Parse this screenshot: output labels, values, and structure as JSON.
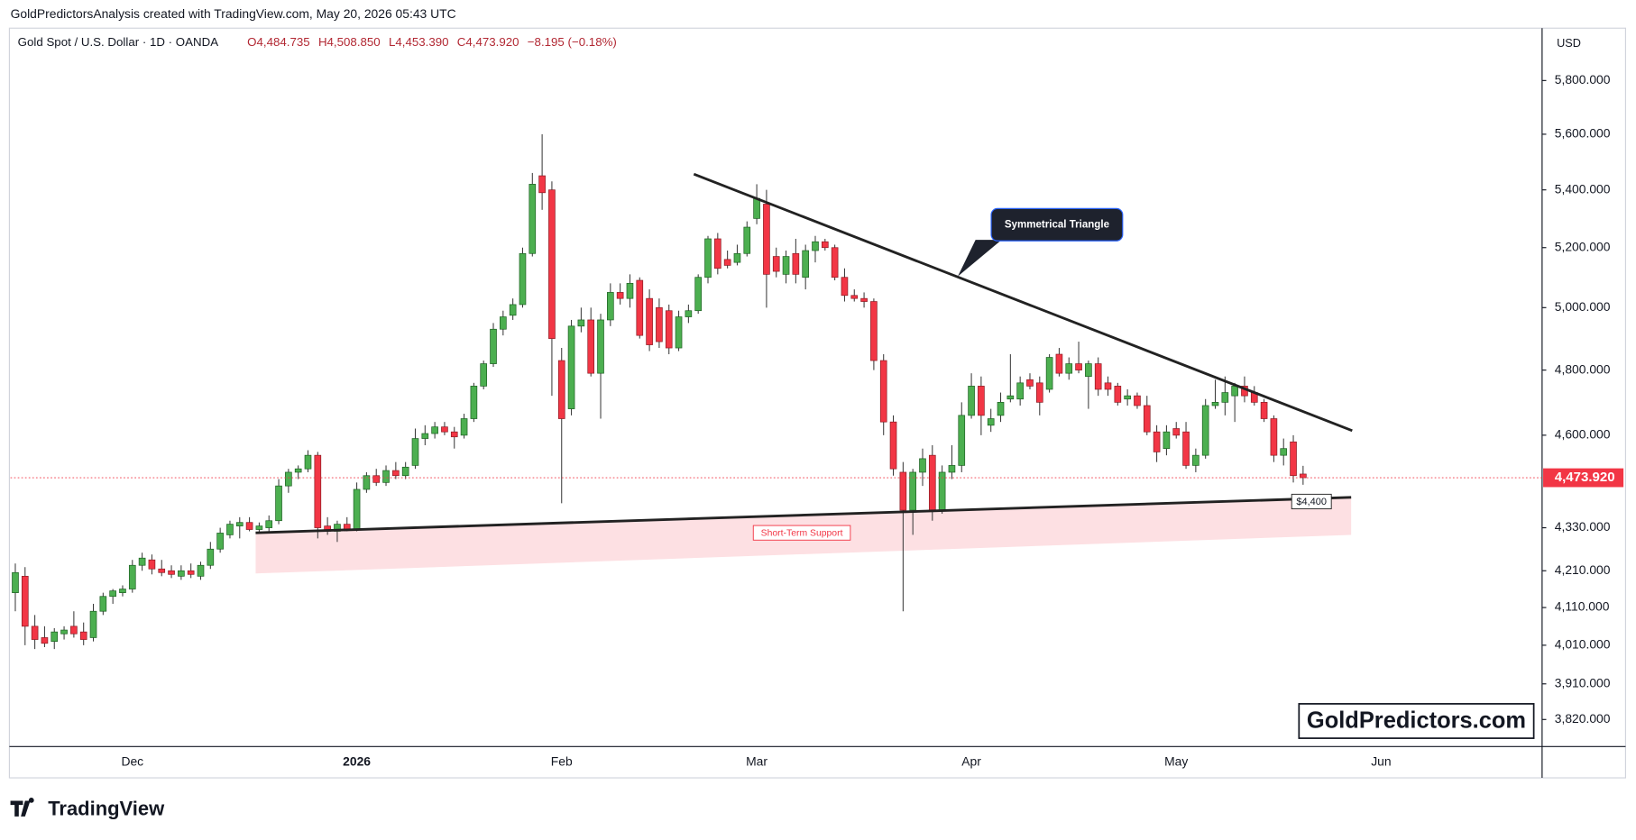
{
  "chart_data": {
    "type": "candlestick",
    "attribution": "GoldPredictorsAnalysis created with TradingView.com, May 20, 2026 05:43 UTC",
    "symbol": "Gold Spot / U.S. Dollar · 1D · OANDA",
    "header_values": [
      "O4,484.735",
      "H4,508.850",
      "L4,453.390",
      "C4,473.920",
      "−8.195 (−0.18%)"
    ],
    "currency": "USD",
    "last_price_label": "4,473.920",
    "annotations": [
      "Symmetrical Triangle",
      "Short-Term Support",
      "$4,400"
    ],
    "watermark": "GoldPredictors.com",
    "logo": "TradingView",
    "log_scale": true,
    "up_color": "#4caf50",
    "down_color": "#f23645",
    "categories": [
      null,
      null,
      null,
      null,
      null,
      null,
      null,
      null,
      null,
      null,
      null,
      null,
      "Dec",
      null,
      null,
      null,
      null,
      null,
      null,
      null,
      null,
      null,
      null,
      null,
      null,
      null,
      null,
      null,
      null,
      null,
      null,
      null,
      null,
      null,
      null,
      "2026",
      null,
      null,
      null,
      null,
      null,
      null,
      null,
      null,
      null,
      null,
      null,
      null,
      null,
      null,
      null,
      null,
      null,
      null,
      null,
      null,
      "Feb",
      null,
      null,
      null,
      null,
      null,
      null,
      null,
      null,
      null,
      null,
      null,
      null,
      null,
      null,
      null,
      null,
      null,
      null,
      null,
      "Mar",
      null,
      null,
      null,
      null,
      null,
      null,
      null,
      null,
      null,
      null,
      null,
      null,
      null,
      null,
      null,
      null,
      null,
      null,
      null,
      null,
      null,
      "Apr",
      null,
      null,
      null,
      null,
      null,
      null,
      null,
      null,
      null,
      null,
      null,
      null,
      null,
      null,
      null,
      null,
      null,
      null,
      null,
      null,
      "May",
      null,
      null,
      null,
      null,
      null,
      null,
      null,
      null,
      null,
      null,
      null,
      null,
      null,
      null,
      null,
      null,
      null,
      null,
      null,
      null,
      "Jun",
      null,
      null,
      null,
      null,
      null,
      null,
      null,
      null,
      null,
      null,
      null,
      null,
      null,
      null,
      null,
      null
    ],
    "open": [
      4150,
      4195,
      4060,
      4030,
      4020,
      4040,
      4060,
      4045,
      4030,
      4100,
      4140,
      4150,
      4160,
      4225,
      4240,
      4215,
      4210,
      4195,
      4210,
      4195,
      4225,
      4270,
      4310,
      4335,
      4345,
      4325,
      4330,
      4350,
      4450,
      4490,
      4500,
      4540,
      4335,
      4320,
      4340,
      4325,
      4440,
      4480,
      4460,
      4495,
      4480,
      4510,
      4590,
      4605,
      4625,
      4610,
      4600,
      4650,
      4750,
      4820,
      4930,
      4975,
      5010,
      5180,
      5450,
      5400,
      4830,
      4680,
      4940,
      4960,
      4790,
      4960,
      5050,
      5030,
      5090,
      5030,
      5000,
      4990,
      4870,
      4970,
      4990,
      5100,
      5230,
      5160,
      5150,
      5180,
      5300,
      5350,
      5170,
      5110,
      5180,
      5100,
      5190,
      5220,
      5200,
      5100,
      5040,
      5030,
      5020,
      4830,
      4640,
      4490,
      4380,
      4490,
      4540,
      4380,
      4490,
      4510,
      4660,
      4750,
      4630,
      4660,
      4710,
      4710,
      4770,
      4760,
      4740,
      4850,
      4790,
      4820,
      4780,
      4820,
      4760,
      4750,
      4710,
      4720,
      4690,
      4610,
      4560,
      4620,
      4610,
      4510,
      4540,
      4690,
      4700,
      4720,
      4750,
      4730,
      4700,
      4650,
      4540,
      4580,
      4484.735,
      null,
      null,
      null,
      null,
      null,
      null,
      null,
      null,
      null,
      null,
      null,
      null,
      null,
      null,
      null,
      null,
      null,
      null,
      null,
      null,
      null,
      null,
      null,
      null
    ],
    "high": [
      4230,
      4220,
      4090,
      4060,
      4055,
      4060,
      4100,
      4070,
      4120,
      4150,
      4160,
      4170,
      4240,
      4260,
      4255,
      4240,
      4225,
      4225,
      4230,
      4235,
      4290,
      4330,
      4350,
      4360,
      4360,
      4345,
      4365,
      4470,
      4500,
      4510,
      4555,
      4550,
      4360,
      4350,
      4360,
      4460,
      4490,
      4500,
      4510,
      4520,
      4520,
      4620,
      4630,
      4640,
      4640,
      4625,
      4665,
      4760,
      4830,
      4950,
      4990,
      5030,
      5200,
      5460,
      5600,
      5430,
      4870,
      4960,
      5000,
      5000,
      4980,
      5080,
      5080,
      5110,
      5100,
      5060,
      5030,
      5010,
      4990,
      5010,
      5110,
      5240,
      5250,
      5190,
      5210,
      5290,
      5420,
      5400,
      5200,
      5190,
      5230,
      5210,
      5240,
      5230,
      5210,
      5130,
      5060,
      5050,
      5030,
      4850,
      4660,
      4520,
      4500,
      4560,
      4570,
      4510,
      4570,
      4700,
      4790,
      4780,
      4680,
      4730,
      4850,
      4780,
      4790,
      4780,
      4850,
      4870,
      4840,
      4890,
      4830,
      4840,
      4780,
      4760,
      4740,
      4730,
      4720,
      4630,
      4630,
      4640,
      4640,
      4560,
      4710,
      4770,
      4780,
      4760,
      4780,
      4750,
      4710,
      4660,
      4590,
      4600,
      4508.85,
      null,
      null,
      null,
      null,
      null,
      null,
      null,
      null,
      null,
      null,
      null,
      null,
      null,
      null,
      null,
      null,
      null,
      null,
      null,
      null,
      null,
      null,
      null,
      null
    ],
    "low": [
      4100,
      4010,
      4000,
      4005,
      4000,
      4025,
      4030,
      4010,
      4020,
      4090,
      4120,
      4140,
      4150,
      4210,
      4200,
      4195,
      4190,
      4185,
      4190,
      4185,
      4215,
      4260,
      4300,
      4300,
      4320,
      4315,
      4320,
      4340,
      4430,
      4470,
      4490,
      4300,
      4310,
      4290,
      4320,
      4320,
      4430,
      4450,
      4450,
      4470,
      4470,
      4500,
      4570,
      4590,
      4600,
      4560,
      4590,
      4640,
      4740,
      4810,
      4910,
      4960,
      5000,
      5170,
      5330,
      4720,
      4400,
      4660,
      4920,
      4780,
      4650,
      4940,
      5010,
      5000,
      4900,
      4860,
      4870,
      4850,
      4860,
      4950,
      4980,
      5080,
      5110,
      5130,
      5140,
      5170,
      5280,
      5000,
      5100,
      5080,
      5080,
      5060,
      5150,
      5190,
      5090,
      5020,
      5020,
      5000,
      4800,
      4600,
      4480,
      4100,
      4310,
      4450,
      4350,
      4370,
      4470,
      4490,
      4650,
      4600,
      4610,
      4640,
      4700,
      4690,
      4740,
      4660,
      4730,
      4780,
      4770,
      4790,
      4680,
      4720,
      4720,
      4690,
      4690,
      4680,
      4600,
      4520,
      4540,
      4590,
      4500,
      4490,
      4530,
      4680,
      4660,
      4640,
      4700,
      4690,
      4640,
      4520,
      4510,
      4460,
      4453.39,
      null,
      null,
      null,
      null,
      null,
      null,
      null,
      null,
      null,
      null,
      null,
      null,
      null,
      null,
      null,
      null,
      null,
      null,
      null,
      null,
      null,
      null,
      null,
      null
    ],
    "close": [
      4205,
      4060,
      4025,
      4015,
      4045,
      4050,
      4040,
      4025,
      4100,
      4140,
      4155,
      4160,
      4225,
      4245,
      4215,
      4205,
      4200,
      4210,
      4200,
      4225,
      4270,
      4315,
      4340,
      4345,
      4325,
      4335,
      4350,
      4450,
      4490,
      4500,
      4540,
      4330,
      4320,
      4340,
      4325,
      4440,
      4480,
      4460,
      4495,
      4480,
      4505,
      4590,
      4605,
      4625,
      4610,
      4595,
      4650,
      4750,
      4820,
      4930,
      4970,
      5010,
      5180,
      5420,
      5390,
      4900,
      4650,
      4940,
      4960,
      4790,
      4960,
      5050,
      5030,
      5080,
      4910,
      4880,
      4890,
      4870,
      4970,
      4990,
      5100,
      5230,
      5130,
      5140,
      5180,
      5270,
      5370,
      5110,
      5120,
      5170,
      5110,
      5190,
      5220,
      5200,
      5100,
      5040,
      5030,
      5020,
      4830,
      4640,
      4500,
      4380,
      4490,
      4530,
      4380,
      4490,
      4510,
      4660,
      4750,
      4660,
      4650,
      4700,
      4720,
      4760,
      4750,
      4700,
      4840,
      4790,
      4820,
      4800,
      4820,
      4740,
      4740,
      4700,
      4720,
      4690,
      4610,
      4550,
      4610,
      4600,
      4510,
      4540,
      4690,
      4700,
      4730,
      4750,
      4720,
      4700,
      4650,
      4540,
      4560,
      4480,
      4473.92,
      null,
      null,
      null,
      null,
      null,
      null,
      null,
      null,
      null,
      null,
      null,
      null,
      null,
      null,
      null,
      null,
      null,
      null,
      null,
      null,
      null,
      null,
      null,
      null
    ],
    "ylim": [
      3753,
      6002
    ],
    "yticks": [
      {
        "value": 5800,
        "label": "5,800.000"
      },
      {
        "value": 5600,
        "label": "5,600.000"
      },
      {
        "value": 5400,
        "label": "5,400.000"
      },
      {
        "value": 5200,
        "label": "5,200.000"
      },
      {
        "value": 5000,
        "label": "5,000.000"
      },
      {
        "value": 4800,
        "label": "4,800.000"
      },
      {
        "value": 4600,
        "label": "4,600.000"
      },
      {
        "value": 4330,
        "label": "4,330.000"
      },
      {
        "value": 4210,
        "label": "4,210.000"
      },
      {
        "value": 4110,
        "label": "4,110.000"
      },
      {
        "value": 4010,
        "label": "4,010.000"
      },
      {
        "value": 3910,
        "label": "3,910.000"
      },
      {
        "value": 3820,
        "label": "3,820.000"
      }
    ]
  }
}
